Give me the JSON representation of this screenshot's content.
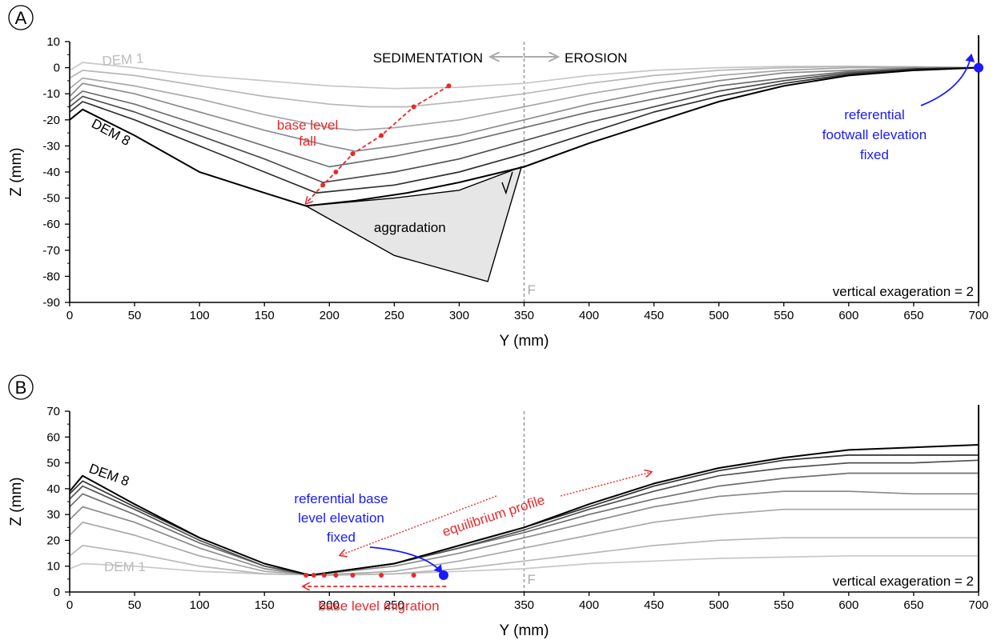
{
  "chart_data": [
    {
      "panel_label": "A",
      "type": "line",
      "xlabel": "Y (mm)",
      "ylabel": "Z (mm)",
      "xlim": [
        0,
        700
      ],
      "ylim": [
        -90,
        10
      ],
      "x_ticks": [
        0,
        50,
        100,
        150,
        200,
        250,
        300,
        350,
        400,
        450,
        500,
        550,
        600,
        650,
        700
      ],
      "y_ticks": [
        10,
        0,
        -10,
        -20,
        -30,
        -40,
        -50,
        -60,
        -70,
        -80,
        -90
      ],
      "series": [
        {
          "name": "DEM 1",
          "color": "#c8c8c8",
          "x": [
            0,
            10,
            50,
            100,
            150,
            200,
            250,
            300,
            350,
            400,
            450,
            500,
            550,
            600,
            650,
            700
          ],
          "y": [
            -1,
            2,
            0,
            -3,
            -5,
            -7,
            -8,
            -7.5,
            -6,
            -3,
            -1,
            0,
            0.5,
            0.5,
            0.3,
            0
          ]
        },
        {
          "name": "",
          "color": "#b8b8b8",
          "x": [
            0,
            10,
            50,
            100,
            150,
            200,
            230,
            260,
            300,
            350,
            400,
            450,
            500,
            550,
            600,
            650,
            700
          ],
          "y": [
            -4,
            -1,
            -3,
            -7,
            -11,
            -14,
            -15,
            -15,
            -13,
            -10,
            -6,
            -3,
            -1,
            0,
            0.5,
            0.3,
            0
          ]
        },
        {
          "name": "",
          "color": "#a8a8a8",
          "x": [
            0,
            10,
            50,
            100,
            150,
            200,
            220,
            250,
            300,
            350,
            400,
            450,
            500,
            550,
            600,
            650,
            700
          ],
          "y": [
            -8,
            -4,
            -7,
            -12,
            -18,
            -23,
            -24,
            -23,
            -20,
            -15,
            -10,
            -6,
            -3,
            -1,
            0,
            0.3,
            0
          ]
        },
        {
          "name": "",
          "color": "#8c8c8c",
          "x": [
            0,
            10,
            50,
            100,
            150,
            200,
            220,
            250,
            300,
            350,
            400,
            450,
            500,
            550,
            600,
            650,
            700
          ],
          "y": [
            -11,
            -6,
            -10,
            -17,
            -24,
            -30,
            -32,
            -30,
            -26,
            -20,
            -14,
            -9,
            -5,
            -2,
            -1,
            0,
            0
          ]
        },
        {
          "name": "",
          "color": "#707070",
          "x": [
            0,
            10,
            50,
            100,
            150,
            200,
            250,
            300,
            350,
            400,
            450,
            500,
            550,
            600,
            650,
            700
          ],
          "y": [
            -13,
            -9,
            -14,
            -22,
            -30,
            -38,
            -34,
            -29,
            -23,
            -17,
            -12,
            -7,
            -4,
            -1.5,
            -0.5,
            0
          ]
        },
        {
          "name": "",
          "color": "#505050",
          "x": [
            0,
            10,
            50,
            100,
            150,
            195,
            250,
            300,
            350,
            400,
            450,
            500,
            550,
            600,
            650,
            700
          ],
          "y": [
            -15,
            -11,
            -17,
            -26,
            -35,
            -44,
            -40,
            -35,
            -28,
            -21,
            -15,
            -9,
            -5,
            -2,
            -0.5,
            0
          ]
        },
        {
          "name": "",
          "color": "#303030",
          "x": [
            0,
            10,
            50,
            100,
            150,
            190,
            250,
            300,
            350,
            400,
            450,
            500,
            550,
            600,
            650,
            700
          ],
          "y": [
            -17,
            -13,
            -20,
            -30,
            -40,
            -48,
            -45,
            -40,
            -33,
            -25,
            -17,
            -11,
            -6,
            -2.5,
            -0.5,
            0
          ]
        },
        {
          "name": "DEM 8",
          "color": "#000000",
          "x": [
            0,
            10,
            50,
            100,
            150,
            182,
            220,
            260,
            300,
            350,
            400,
            450,
            500,
            550,
            600,
            650,
            700
          ],
          "y": [
            -20,
            -16,
            -26,
            -40,
            -48,
            -53,
            -51,
            -48,
            -44,
            -38,
            -29,
            -21,
            -13,
            -7,
            -3,
            -1,
            0
          ]
        }
      ],
      "aggradation_polygon": {
        "x": [
          182,
          250,
          300,
          348,
          322,
          250
        ],
        "y": [
          -53,
          -50,
          -47,
          -38,
          -82,
          -72
        ]
      },
      "base_level_points": {
        "x": [
          182,
          195,
          205,
          218,
          240,
          265,
          292
        ],
        "y": [
          -52,
          -45,
          -40,
          -33,
          -26,
          -15,
          -7
        ]
      },
      "fault_x": 350,
      "fixed_point": {
        "x": 700,
        "y": 0
      },
      "annotations": {
        "sedimentation": "SEDIMENTATION",
        "erosion": "EROSION",
        "dem1": "DEM 1",
        "dem8": "DEM 8",
        "base_level_fall_line1": "base level",
        "base_level_fall_line2": "fall",
        "aggradation": "aggradation",
        "fault": "F",
        "referential_line1": "referential",
        "referential_line2": "footwall elevation",
        "referential_line3": "fixed",
        "vertical_exaggeration": "vertical exageration = 2"
      },
      "colors": {
        "annotation_red": "#e8282b",
        "annotation_blue": "#1a1aff",
        "aggradation_fill": "#e6e6e6"
      }
    },
    {
      "panel_label": "B",
      "type": "line",
      "xlabel": "Y (mm)",
      "ylabel": "Z (mm)",
      "xlim": [
        0,
        700
      ],
      "ylim": [
        0,
        70
      ],
      "x_ticks": [
        0,
        50,
        100,
        150,
        200,
        250,
        350,
        400,
        450,
        500,
        550,
        600,
        650,
        700
      ],
      "y_ticks": [
        70,
        60,
        50,
        40,
        30,
        20,
        10,
        0
      ],
      "series": [
        {
          "name": "DEM 1",
          "color": "#c8c8c8",
          "x": [
            0,
            10,
            50,
            100,
            150,
            200,
            250,
            300,
            350,
            400,
            450,
            500,
            550,
            600,
            650,
            700
          ],
          "y": [
            9,
            11,
            10,
            8,
            7,
            6.5,
            7,
            8,
            9,
            11,
            12,
            13,
            13.5,
            14,
            14,
            14
          ]
        },
        {
          "name": "",
          "color": "#b8b8b8",
          "x": [
            0,
            10,
            50,
            100,
            150,
            200,
            250,
            300,
            350,
            400,
            450,
            500,
            550,
            600,
            650,
            700
          ],
          "y": [
            14,
            18,
            15,
            10,
            7,
            6.5,
            7,
            9,
            12,
            15,
            18,
            20,
            21,
            21,
            21,
            21
          ]
        },
        {
          "name": "",
          "color": "#a8a8a8",
          "x": [
            0,
            10,
            50,
            100,
            150,
            190,
            250,
            300,
            350,
            400,
            450,
            500,
            550,
            600,
            650,
            700
          ],
          "y": [
            22,
            27,
            22,
            14,
            8,
            6.5,
            8,
            12,
            17,
            22,
            27,
            30,
            32,
            32,
            32,
            32
          ]
        },
        {
          "name": "",
          "color": "#8c8c8c",
          "x": [
            0,
            10,
            50,
            100,
            150,
            185,
            250,
            300,
            350,
            400,
            450,
            500,
            550,
            600,
            650,
            700
          ],
          "y": [
            28,
            33,
            27,
            17,
            9,
            6.5,
            10,
            15,
            21,
            27,
            33,
            37,
            39,
            39,
            38,
            38
          ]
        },
        {
          "name": "",
          "color": "#707070",
          "x": [
            0,
            10,
            50,
            100,
            150,
            185,
            250,
            300,
            350,
            400,
            450,
            500,
            550,
            600,
            650,
            700
          ],
          "y": [
            33,
            38,
            30,
            19,
            10,
            6.5,
            11,
            17,
            23,
            30,
            36,
            41,
            44,
            46,
            46,
            46
          ]
        },
        {
          "name": "",
          "color": "#505050",
          "x": [
            0,
            10,
            50,
            100,
            150,
            185,
            250,
            300,
            350,
            400,
            450,
            500,
            550,
            600,
            650,
            700
          ],
          "y": [
            36,
            41,
            32,
            20,
            10,
            6.5,
            11,
            17,
            24,
            32,
            39,
            45,
            48,
            50,
            50,
            51
          ]
        },
        {
          "name": "",
          "color": "#303030",
          "x": [
            0,
            10,
            50,
            100,
            150,
            185,
            250,
            300,
            350,
            400,
            450,
            500,
            550,
            600,
            650,
            700
          ],
          "y": [
            38,
            43,
            33,
            21,
            11,
            6.5,
            11,
            18,
            25,
            33,
            41,
            47,
            51,
            53,
            53,
            53
          ]
        },
        {
          "name": "DEM 8",
          "color": "#000000",
          "x": [
            0,
            10,
            50,
            100,
            150,
            185,
            250,
            300,
            350,
            400,
            450,
            500,
            550,
            600,
            650,
            700
          ],
          "y": [
            39,
            45,
            34,
            21,
            11,
            6.5,
            11,
            18,
            25,
            34,
            42,
            48,
            52,
            55,
            56,
            57
          ]
        }
      ],
      "base_level_points": {
        "x": [
          182,
          188,
          196,
          205,
          218,
          240,
          265
        ],
        "y": [
          6.5,
          6.5,
          6.5,
          6.5,
          6.5,
          6.5,
          6.5
        ]
      },
      "fault_x": 350,
      "fixed_point": {
        "x": 288,
        "y": 6.5
      },
      "annotations": {
        "dem1": "DEM 1",
        "dem8": "DEM 8",
        "referential_line1": "referential base",
        "referential_line2": "level elevation",
        "referential_line3": "fixed",
        "equilibrium": "equilibrium profile",
        "base_level_migration": "base level migration",
        "fault": "F",
        "vertical_exaggeration": "vertical exageration = 2"
      },
      "colors": {
        "annotation_red": "#e8282b",
        "annotation_blue": "#1a1aff"
      }
    }
  ]
}
